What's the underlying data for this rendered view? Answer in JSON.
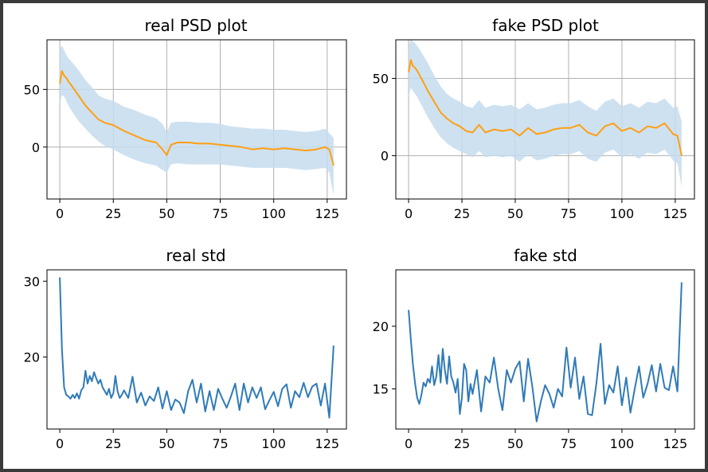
{
  "chart_data": [
    {
      "type": "line",
      "title": "real PSD plot",
      "xlabel": "",
      "ylabel": "",
      "xlim": [
        -6,
        134
      ],
      "ylim": [
        -45,
        93
      ],
      "xticks": [
        0,
        25,
        50,
        75,
        100,
        125
      ],
      "yticks": [
        50,
        0
      ],
      "xtick_labels": [
        "0",
        "25",
        "50",
        "75",
        "100",
        "125"
      ],
      "ytick_labels": [
        "50",
        "0"
      ],
      "grid": true,
      "line_color": "#ff9f10",
      "band_color": "#c6dcee",
      "x": [
        0,
        1,
        2,
        3,
        4,
        6,
        9,
        12,
        15,
        18,
        21,
        25,
        30,
        35,
        40,
        45,
        48,
        50,
        52,
        55,
        60,
        65,
        70,
        75,
        80,
        85,
        90,
        95,
        100,
        105,
        110,
        115,
        120,
        124,
        126,
        128
      ],
      "values": [
        55,
        66,
        62,
        60,
        57,
        52,
        44,
        36,
        30,
        24,
        21,
        19,
        14,
        10,
        6,
        4,
        -2,
        -7,
        2,
        4,
        4,
        3,
        3,
        2,
        1,
        0,
        -2,
        -1,
        -2,
        -1,
        -2,
        -3,
        -2,
        0,
        -2,
        -16
      ],
      "band_lower": [
        38,
        45,
        44,
        40,
        36,
        30,
        22,
        16,
        10,
        5,
        1,
        -2,
        -7,
        -11,
        -14,
        -16,
        -20,
        -22,
        -15,
        -14,
        -15,
        -15,
        -15,
        -15,
        -16,
        -17,
        -18,
        -18,
        -18,
        -18,
        -19,
        -20,
        -19,
        -18,
        -22,
        -42
      ],
      "band_upper": [
        85,
        88,
        84,
        80,
        77,
        73,
        66,
        58,
        52,
        45,
        42,
        40,
        35,
        32,
        28,
        25,
        20,
        13,
        21,
        22,
        22,
        21,
        21,
        20,
        18,
        17,
        16,
        16,
        15,
        15,
        14,
        13,
        14,
        16,
        12,
        8
      ]
    },
    {
      "type": "line",
      "title": "fake PSD plot",
      "xlabel": "",
      "ylabel": "",
      "xlim": [
        -6,
        134
      ],
      "ylim": [
        -28,
        75
      ],
      "xticks": [
        0,
        25,
        50,
        75,
        100,
        125
      ],
      "yticks": [
        50,
        0
      ],
      "xtick_labels": [
        "0",
        "25",
        "50",
        "75",
        "100",
        "125"
      ],
      "ytick_labels": [
        "50",
        "0"
      ],
      "grid": true,
      "line_color": "#ff9f10",
      "band_color": "#c6dcee",
      "x": [
        0,
        1,
        2,
        3,
        4,
        6,
        9,
        12,
        15,
        18,
        21,
        24,
        27,
        30,
        33,
        36,
        40,
        44,
        48,
        52,
        56,
        60,
        64,
        68,
        72,
        76,
        80,
        84,
        88,
        92,
        96,
        100,
        104,
        108,
        112,
        116,
        120,
        124,
        126,
        128
      ],
      "values": [
        54,
        62,
        58,
        57,
        55,
        50,
        42,
        35,
        28,
        24,
        21,
        19,
        16,
        15,
        20,
        15,
        17,
        16,
        17,
        13,
        18,
        14,
        15,
        17,
        18,
        18,
        20,
        15,
        13,
        19,
        21,
        16,
        18,
        15,
        19,
        18,
        21,
        14,
        13,
        0
      ],
      "band_lower": [
        38,
        44,
        42,
        40,
        38,
        33,
        25,
        18,
        12,
        8,
        5,
        3,
        1,
        -1,
        3,
        -1,
        0,
        -1,
        0,
        -4,
        1,
        -3,
        -2,
        0,
        1,
        1,
        3,
        -2,
        -4,
        2,
        4,
        -1,
        1,
        -2,
        2,
        1,
        4,
        -3,
        -5,
        -20
      ],
      "band_upper": [
        70,
        76,
        74,
        73,
        71,
        67,
        60,
        52,
        45,
        40,
        37,
        35,
        32,
        31,
        36,
        31,
        33,
        32,
        33,
        30,
        34,
        30,
        31,
        33,
        34,
        34,
        36,
        32,
        29,
        35,
        37,
        32,
        34,
        31,
        35,
        34,
        37,
        31,
        32,
        22
      ]
    },
    {
      "type": "line",
      "title": "real std",
      "xlabel": "",
      "ylabel": "",
      "xlim": [
        -6,
        134
      ],
      "ylim": [
        10.5,
        31.5
      ],
      "xticks": [
        0,
        25,
        50,
        75,
        100,
        125
      ],
      "yticks": [
        30,
        20
      ],
      "xtick_labels": [
        "0",
        "25",
        "50",
        "75",
        "100",
        "125"
      ],
      "ytick_labels": [
        "30",
        "20"
      ],
      "grid": false,
      "line_color": "#2f7ab8",
      "x": [
        0,
        1,
        2,
        3,
        4,
        5,
        6,
        7,
        8,
        9,
        10,
        11,
        12,
        13,
        14,
        15,
        16,
        17,
        18,
        19,
        20,
        21,
        22,
        23,
        24,
        25,
        26,
        27,
        28,
        29,
        30,
        32,
        34,
        36,
        38,
        40,
        42,
        44,
        46,
        48,
        50,
        52,
        54,
        56,
        58,
        60,
        62,
        64,
        66,
        68,
        70,
        72,
        74,
        76,
        78,
        80,
        82,
        84,
        86,
        88,
        90,
        92,
        94,
        96,
        98,
        100,
        102,
        104,
        106,
        108,
        110,
        112,
        114,
        116,
        118,
        120,
        122,
        124,
        126,
        128
      ],
      "values": [
        30.5,
        21,
        16,
        15,
        14.8,
        14.5,
        15,
        14.6,
        15.2,
        14.5,
        15.6,
        16,
        18.2,
        16.5,
        17.5,
        16.8,
        18,
        17.2,
        16.5,
        17,
        16,
        15.5,
        15,
        15.8,
        14.6,
        15.2,
        17.5,
        15.5,
        14.6,
        15,
        15.6,
        14.6,
        17.4,
        14,
        15.3,
        13.6,
        14.8,
        14.2,
        16,
        13.2,
        15.5,
        13,
        14.4,
        14,
        12.6,
        15.5,
        17,
        14,
        16.5,
        12.8,
        15.5,
        13,
        15.8,
        14.5,
        13.3,
        14.8,
        16.5,
        13,
        16.5,
        14,
        16,
        14.6,
        16,
        13.1,
        14.3,
        15.4,
        13.5,
        15.8,
        16.4,
        13.3,
        15.5,
        14.7,
        16.6,
        14.7,
        16.1,
        16.5,
        13.6,
        16.5,
        12,
        21.5
      ]
    },
    {
      "type": "line",
      "title": "fake std",
      "xlabel": "",
      "ylabel": "",
      "xlim": [
        -6,
        134
      ],
      "ylim": [
        11.8,
        24.5
      ],
      "xticks": [
        0,
        25,
        50,
        75,
        100,
        125
      ],
      "yticks": [
        20,
        15
      ],
      "xtick_labels": [
        "0",
        "25",
        "50",
        "75",
        "100",
        "125"
      ],
      "ytick_labels": [
        "20",
        "15"
      ],
      "grid": false,
      "line_color": "#2f7ab8",
      "x": [
        0,
        1,
        2,
        3,
        4,
        5,
        6,
        7,
        8,
        9,
        10,
        11,
        12,
        13,
        14,
        15,
        16,
        17,
        18,
        19,
        20,
        21,
        22,
        23,
        24,
        25,
        26,
        27,
        28,
        29,
        30,
        32,
        34,
        36,
        38,
        40,
        42,
        44,
        46,
        48,
        50,
        52,
        54,
        56,
        58,
        60,
        62,
        64,
        66,
        68,
        70,
        72,
        74,
        76,
        78,
        80,
        82,
        84,
        86,
        88,
        90,
        92,
        94,
        96,
        98,
        100,
        102,
        104,
        106,
        108,
        110,
        112,
        114,
        116,
        118,
        120,
        122,
        124,
        126,
        128
      ],
      "values": [
        21.3,
        19,
        17,
        15.5,
        14.3,
        13.8,
        14.5,
        15.5,
        15.2,
        15.8,
        15.5,
        16.8,
        15.3,
        16,
        17.7,
        15.5,
        18.2,
        16.5,
        15.4,
        17.6,
        16,
        15.5,
        14.7,
        15.8,
        13,
        14.3,
        17,
        16.5,
        14,
        15.4,
        14.6,
        16.5,
        13.2,
        16,
        15.5,
        17.5,
        15,
        13.3,
        16.5,
        15.5,
        16.6,
        17.2,
        14,
        17.4,
        15.2,
        12.4,
        14,
        15.3,
        14.6,
        13.5,
        15,
        14.4,
        18.3,
        15.1,
        17.5,
        14.2,
        16,
        13,
        12.9,
        15.4,
        18.6,
        13.8,
        15.3,
        14.7,
        16.8,
        13.7,
        15.9,
        13.1,
        15,
        16.8,
        14.3,
        15.4,
        16.9,
        14.8,
        17,
        15.1,
        14.9,
        16.8,
        14.8,
        23.5
      ]
    }
  ]
}
